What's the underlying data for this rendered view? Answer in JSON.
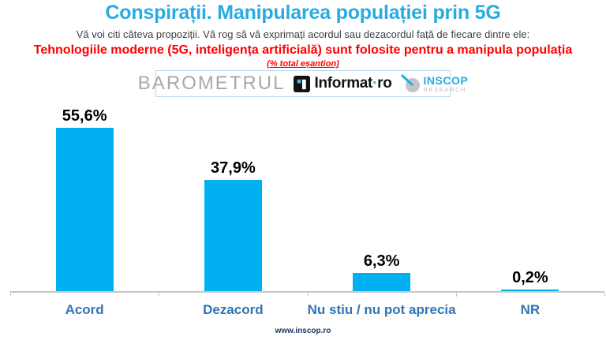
{
  "header": {
    "title": "Conspirații. Manipularea populației prin 5G",
    "subtitle": "Vă voi citi câteva propoziții. Vă rog să vă exprimați acordul sau dezacordul față de fiecare dintre ele:",
    "question": "Tehnologiile moderne (5G, inteligența artificială) sunt folosite pentru a manipula populația",
    "sample_note": "(% total eșantion)"
  },
  "logos": {
    "barometrul": "BAROMETRUL",
    "informat_name": "Informat",
    "informat_dot": "·",
    "informat_suffix": "ro",
    "inscop_name": "INSCOP",
    "inscop_research": "RESEARCH"
  },
  "footer": {
    "url": "www.inscop.ro"
  },
  "colors": {
    "title_blue": "#29ABE2",
    "bar_cyan": "#00B0F0",
    "question_red": "#FF0000",
    "category_blue": "#2E75B6",
    "footer_navy": "#1F3864",
    "axis_gray": "#C6C6C6"
  },
  "chart_data": {
    "type": "bar",
    "categories": [
      "Acord",
      "Dezacord",
      "Nu stiu / nu pot aprecia",
      "NR"
    ],
    "values": [
      55.6,
      37.9,
      6.3,
      0.2
    ],
    "value_labels": [
      "55,6%",
      "37,9%",
      "6,3%",
      "0,2%"
    ],
    "title": "Conspirații. Manipularea populației prin 5G",
    "xlabel": "",
    "ylabel": "% total eșantion",
    "ylim": [
      0,
      60
    ],
    "grid": false,
    "legend": false,
    "bar_color": "#00B0F0"
  }
}
